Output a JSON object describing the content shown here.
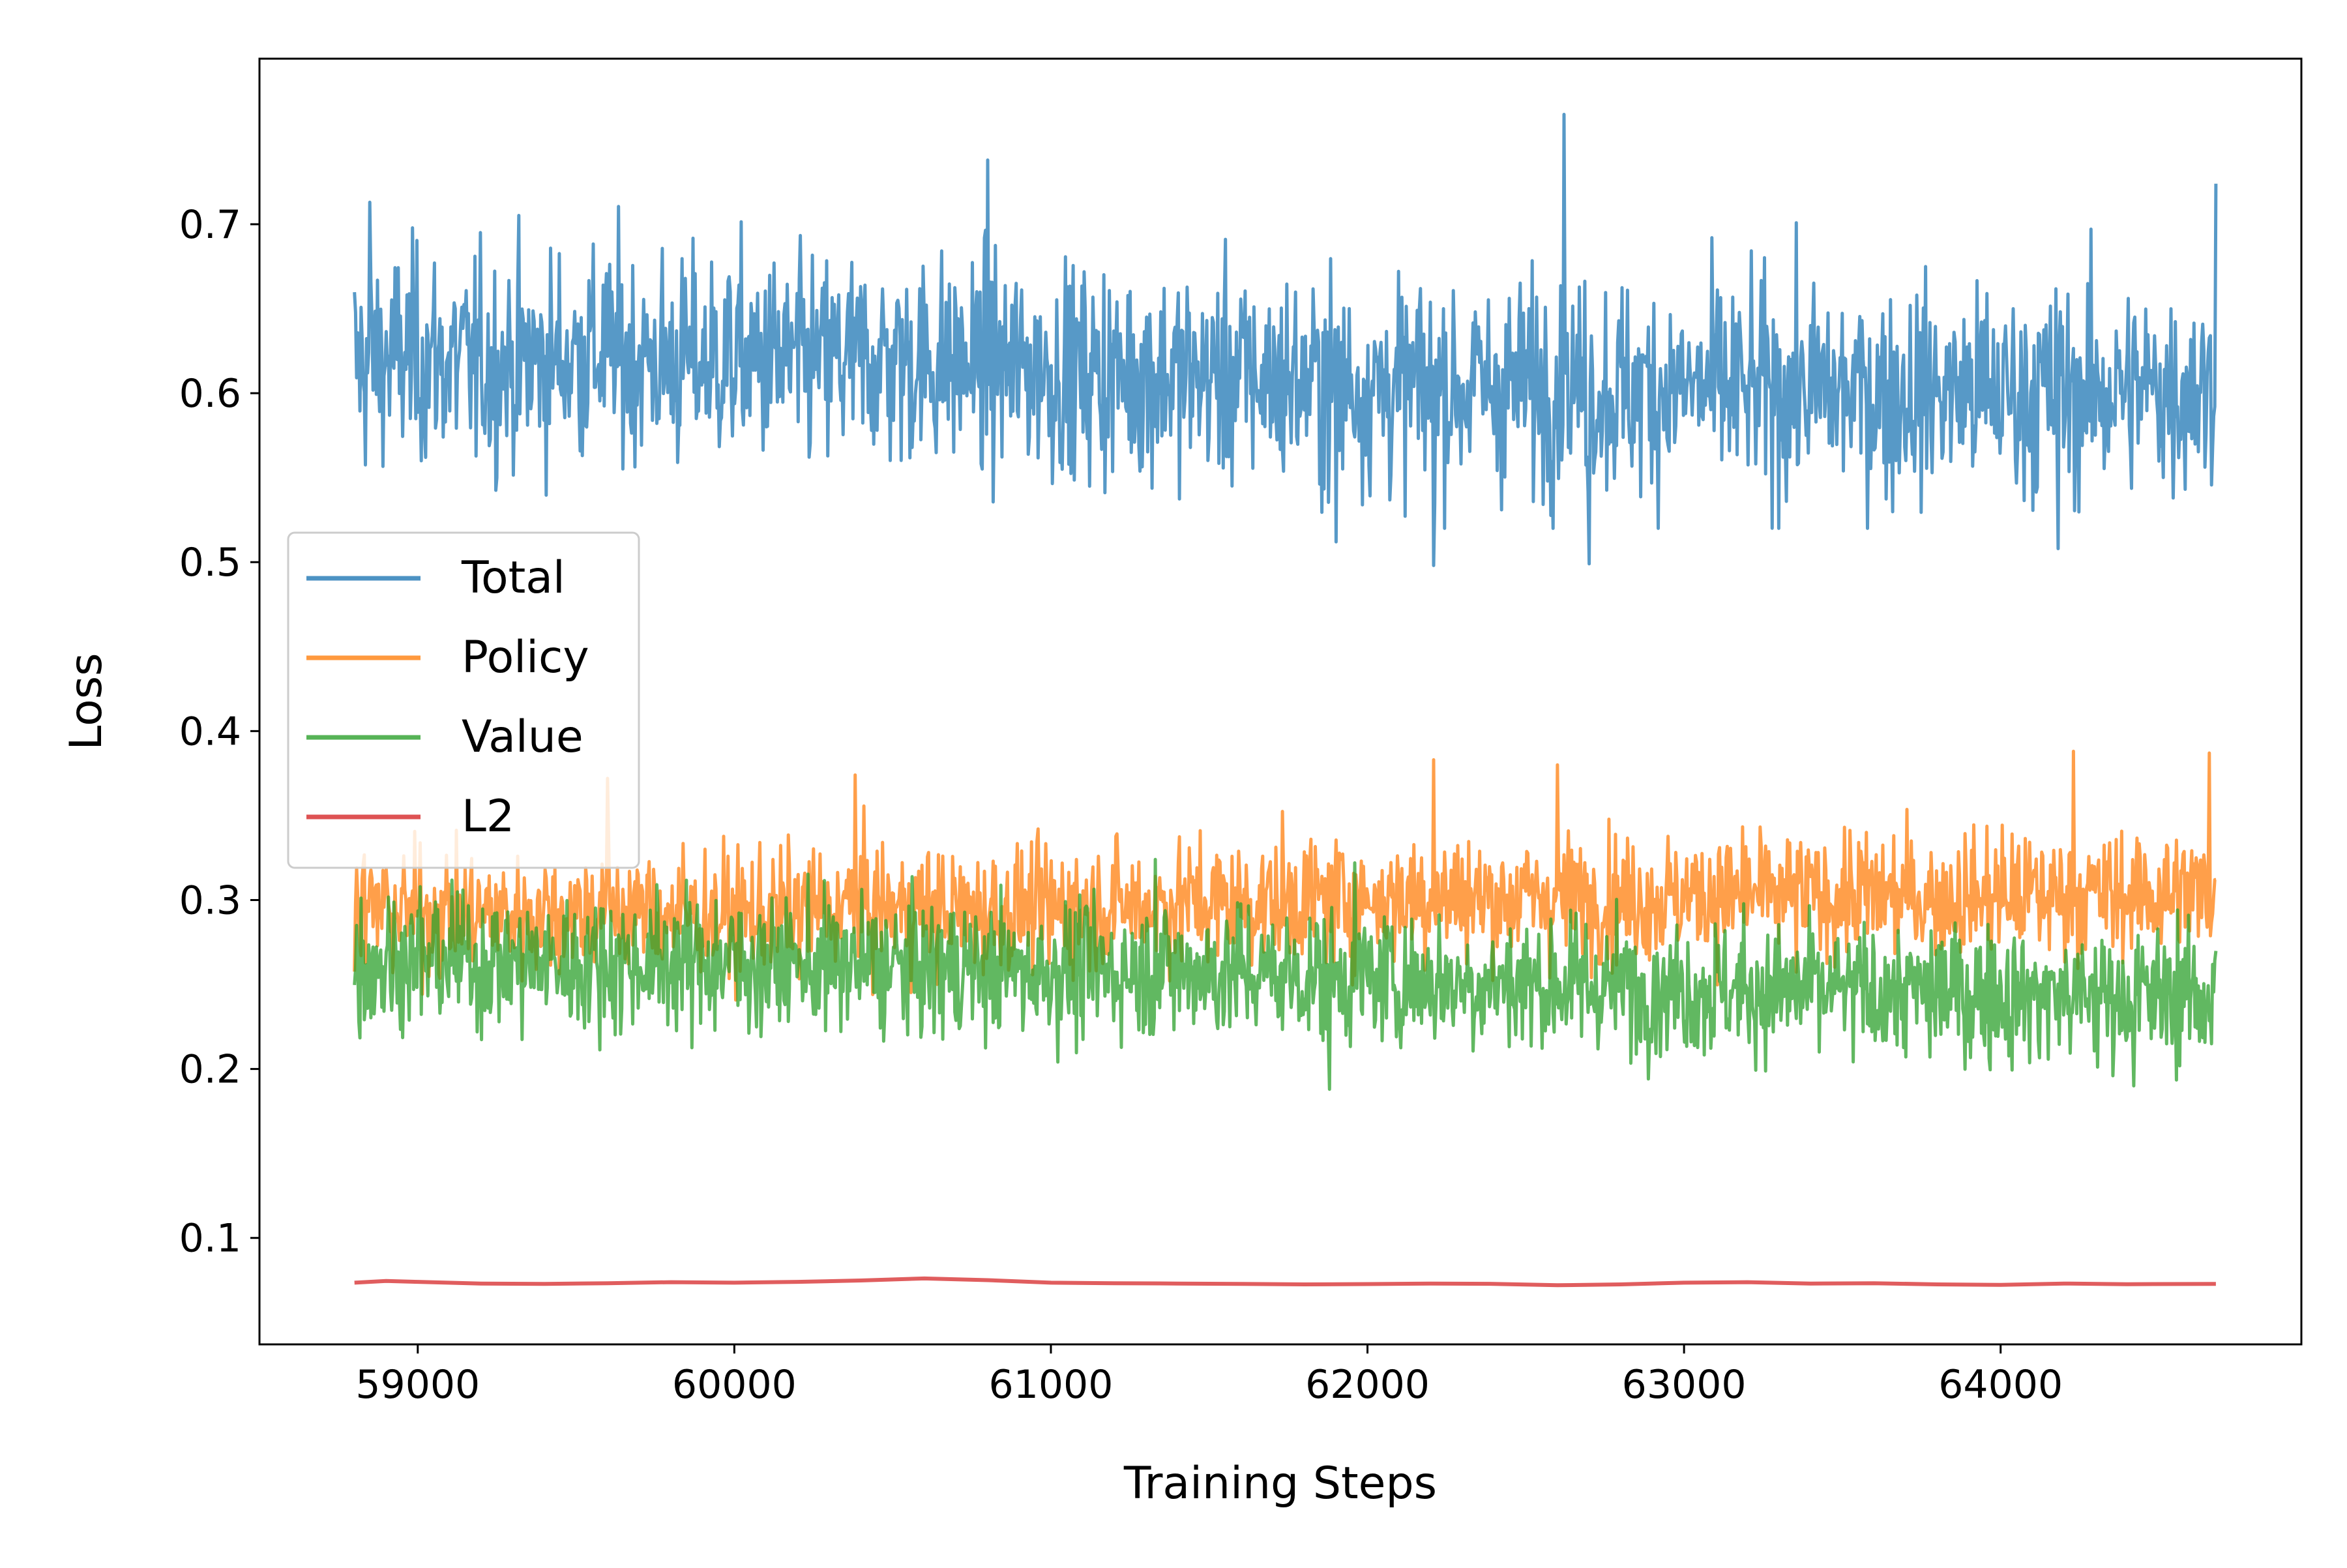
{
  "chart_data": {
    "type": "line",
    "title": "",
    "xlabel": "Training Steps",
    "ylabel": "Loss",
    "xlim": [
      58500,
      64950
    ],
    "ylim": [
      0.037,
      0.798
    ],
    "xticks": [
      59000,
      60000,
      61000,
      62000,
      63000,
      64000
    ],
    "yticks": [
      0.1,
      0.2,
      0.3,
      0.4,
      0.5,
      0.6,
      0.7
    ],
    "x_range": [
      58800,
      64680
    ],
    "grid": false,
    "legend": {
      "position": "center-left",
      "entries": [
        "Total",
        "Policy",
        "Value",
        "L2"
      ]
    },
    "series": [
      {
        "name": "Total",
        "color": "#1f77b4",
        "band": [
          0.52,
          0.74
        ],
        "spikes": [
          {
            "x": 62620,
            "y": 0.765
          },
          {
            "x": 60800,
            "y": 0.738
          },
          {
            "x": 64680,
            "y": 0.724
          },
          {
            "x": 58850,
            "y": 0.713
          },
          {
            "x": 62210,
            "y": 0.498
          },
          {
            "x": 62700,
            "y": 0.499
          },
          {
            "x": 61900,
            "y": 0.512
          },
          {
            "x": 64180,
            "y": 0.508
          }
        ],
        "points": [
          {
            "x": 58800,
            "y": 0.618
          },
          {
            "x": 59000,
            "y": 0.622
          },
          {
            "x": 59200,
            "y": 0.616
          },
          {
            "x": 59400,
            "y": 0.62
          },
          {
            "x": 59600,
            "y": 0.625
          },
          {
            "x": 59800,
            "y": 0.618
          },
          {
            "x": 60000,
            "y": 0.621
          },
          {
            "x": 60200,
            "y": 0.617
          },
          {
            "x": 60400,
            "y": 0.62
          },
          {
            "x": 60600,
            "y": 0.619
          },
          {
            "x": 60800,
            "y": 0.616
          },
          {
            "x": 61000,
            "y": 0.614
          },
          {
            "x": 61200,
            "y": 0.612
          },
          {
            "x": 61400,
            "y": 0.611
          },
          {
            "x": 61600,
            "y": 0.61
          },
          {
            "x": 61800,
            "y": 0.607
          },
          {
            "x": 62000,
            "y": 0.605
          },
          {
            "x": 62200,
            "y": 0.603
          },
          {
            "x": 62400,
            "y": 0.604
          },
          {
            "x": 62600,
            "y": 0.605
          },
          {
            "x": 62800,
            "y": 0.602
          },
          {
            "x": 63000,
            "y": 0.603
          },
          {
            "x": 63200,
            "y": 0.601
          },
          {
            "x": 63400,
            "y": 0.602
          },
          {
            "x": 63600,
            "y": 0.6
          },
          {
            "x": 63800,
            "y": 0.601
          },
          {
            "x": 64000,
            "y": 0.6
          },
          {
            "x": 64200,
            "y": 0.601
          },
          {
            "x": 64400,
            "y": 0.602
          },
          {
            "x": 64680,
            "y": 0.603
          }
        ]
      },
      {
        "name": "Policy",
        "color": "#ff7f0e",
        "band": [
          0.23,
          0.36
        ],
        "spikes": [
          {
            "x": 64230,
            "y": 0.388
          },
          {
            "x": 64660,
            "y": 0.387
          },
          {
            "x": 62210,
            "y": 0.383
          },
          {
            "x": 62600,
            "y": 0.38
          },
          {
            "x": 59600,
            "y": 0.372
          },
          {
            "x": 60380,
            "y": 0.374
          }
        ],
        "points": [
          {
            "x": 58800,
            "y": 0.296
          },
          {
            "x": 59000,
            "y": 0.293
          },
          {
            "x": 59200,
            "y": 0.291
          },
          {
            "x": 59400,
            "y": 0.292
          },
          {
            "x": 59600,
            "y": 0.295
          },
          {
            "x": 59800,
            "y": 0.292
          },
          {
            "x": 60000,
            "y": 0.29
          },
          {
            "x": 60200,
            "y": 0.293
          },
          {
            "x": 60400,
            "y": 0.296
          },
          {
            "x": 60600,
            "y": 0.294
          },
          {
            "x": 60800,
            "y": 0.293
          },
          {
            "x": 61000,
            "y": 0.295
          },
          {
            "x": 61200,
            "y": 0.297
          },
          {
            "x": 61400,
            "y": 0.298
          },
          {
            "x": 61600,
            "y": 0.299
          },
          {
            "x": 61800,
            "y": 0.3
          },
          {
            "x": 62000,
            "y": 0.301
          },
          {
            "x": 62200,
            "y": 0.302
          },
          {
            "x": 62400,
            "y": 0.301
          },
          {
            "x": 62600,
            "y": 0.302
          },
          {
            "x": 62800,
            "y": 0.301
          },
          {
            "x": 63000,
            "y": 0.302
          },
          {
            "x": 63200,
            "y": 0.303
          },
          {
            "x": 63400,
            "y": 0.302
          },
          {
            "x": 63600,
            "y": 0.303
          },
          {
            "x": 63800,
            "y": 0.302
          },
          {
            "x": 64000,
            "y": 0.303
          },
          {
            "x": 64200,
            "y": 0.304
          },
          {
            "x": 64400,
            "y": 0.303
          },
          {
            "x": 64680,
            "y": 0.305
          }
        ]
      },
      {
        "name": "Value",
        "color": "#2ca02c",
        "band": [
          0.19,
          0.33
        ],
        "spikes": [
          {
            "x": 61330,
            "y": 0.324
          },
          {
            "x": 61960,
            "y": 0.322
          },
          {
            "x": 61880,
            "y": 0.188
          },
          {
            "x": 64420,
            "y": 0.19
          }
        ],
        "points": [
          {
            "x": 58800,
            "y": 0.262
          },
          {
            "x": 59000,
            "y": 0.265
          },
          {
            "x": 59200,
            "y": 0.264
          },
          {
            "x": 59400,
            "y": 0.262
          },
          {
            "x": 59600,
            "y": 0.263
          },
          {
            "x": 59800,
            "y": 0.264
          },
          {
            "x": 60000,
            "y": 0.263
          },
          {
            "x": 60200,
            "y": 0.262
          },
          {
            "x": 60400,
            "y": 0.261
          },
          {
            "x": 60600,
            "y": 0.26
          },
          {
            "x": 60800,
            "y": 0.259
          },
          {
            "x": 61000,
            "y": 0.258
          },
          {
            "x": 61200,
            "y": 0.258
          },
          {
            "x": 61400,
            "y": 0.259
          },
          {
            "x": 61600,
            "y": 0.257
          },
          {
            "x": 61800,
            "y": 0.255
          },
          {
            "x": 62000,
            "y": 0.254
          },
          {
            "x": 62200,
            "y": 0.252
          },
          {
            "x": 62400,
            "y": 0.251
          },
          {
            "x": 62600,
            "y": 0.25
          },
          {
            "x": 62800,
            "y": 0.249
          },
          {
            "x": 63000,
            "y": 0.248
          },
          {
            "x": 63200,
            "y": 0.247
          },
          {
            "x": 63400,
            "y": 0.246
          },
          {
            "x": 63600,
            "y": 0.245
          },
          {
            "x": 63800,
            "y": 0.245
          },
          {
            "x": 64000,
            "y": 0.244
          },
          {
            "x": 64200,
            "y": 0.244
          },
          {
            "x": 64400,
            "y": 0.243
          },
          {
            "x": 64680,
            "y": 0.244
          }
        ]
      },
      {
        "name": "L2",
        "color": "#d62728",
        "points": [
          {
            "x": 58800,
            "y": 0.0735
          },
          {
            "x": 58900,
            "y": 0.0745
          },
          {
            "x": 59000,
            "y": 0.074
          },
          {
            "x": 59200,
            "y": 0.073
          },
          {
            "x": 59400,
            "y": 0.0728
          },
          {
            "x": 59600,
            "y": 0.0732
          },
          {
            "x": 59800,
            "y": 0.0738
          },
          {
            "x": 60000,
            "y": 0.0735
          },
          {
            "x": 60200,
            "y": 0.074
          },
          {
            "x": 60400,
            "y": 0.0748
          },
          {
            "x": 60600,
            "y": 0.076
          },
          {
            "x": 60800,
            "y": 0.075
          },
          {
            "x": 61000,
            "y": 0.0735
          },
          {
            "x": 61200,
            "y": 0.0732
          },
          {
            "x": 61400,
            "y": 0.073
          },
          {
            "x": 61600,
            "y": 0.0728
          },
          {
            "x": 61800,
            "y": 0.0725
          },
          {
            "x": 62000,
            "y": 0.0727
          },
          {
            "x": 62200,
            "y": 0.073
          },
          {
            "x": 62400,
            "y": 0.0728
          },
          {
            "x": 62600,
            "y": 0.072
          },
          {
            "x": 62800,
            "y": 0.0725
          },
          {
            "x": 63000,
            "y": 0.0735
          },
          {
            "x": 63200,
            "y": 0.0738
          },
          {
            "x": 63400,
            "y": 0.073
          },
          {
            "x": 63600,
            "y": 0.0732
          },
          {
            "x": 63800,
            "y": 0.0725
          },
          {
            "x": 64000,
            "y": 0.0722
          },
          {
            "x": 64200,
            "y": 0.073
          },
          {
            "x": 64400,
            "y": 0.0726
          },
          {
            "x": 64680,
            "y": 0.0728
          }
        ]
      }
    ]
  }
}
